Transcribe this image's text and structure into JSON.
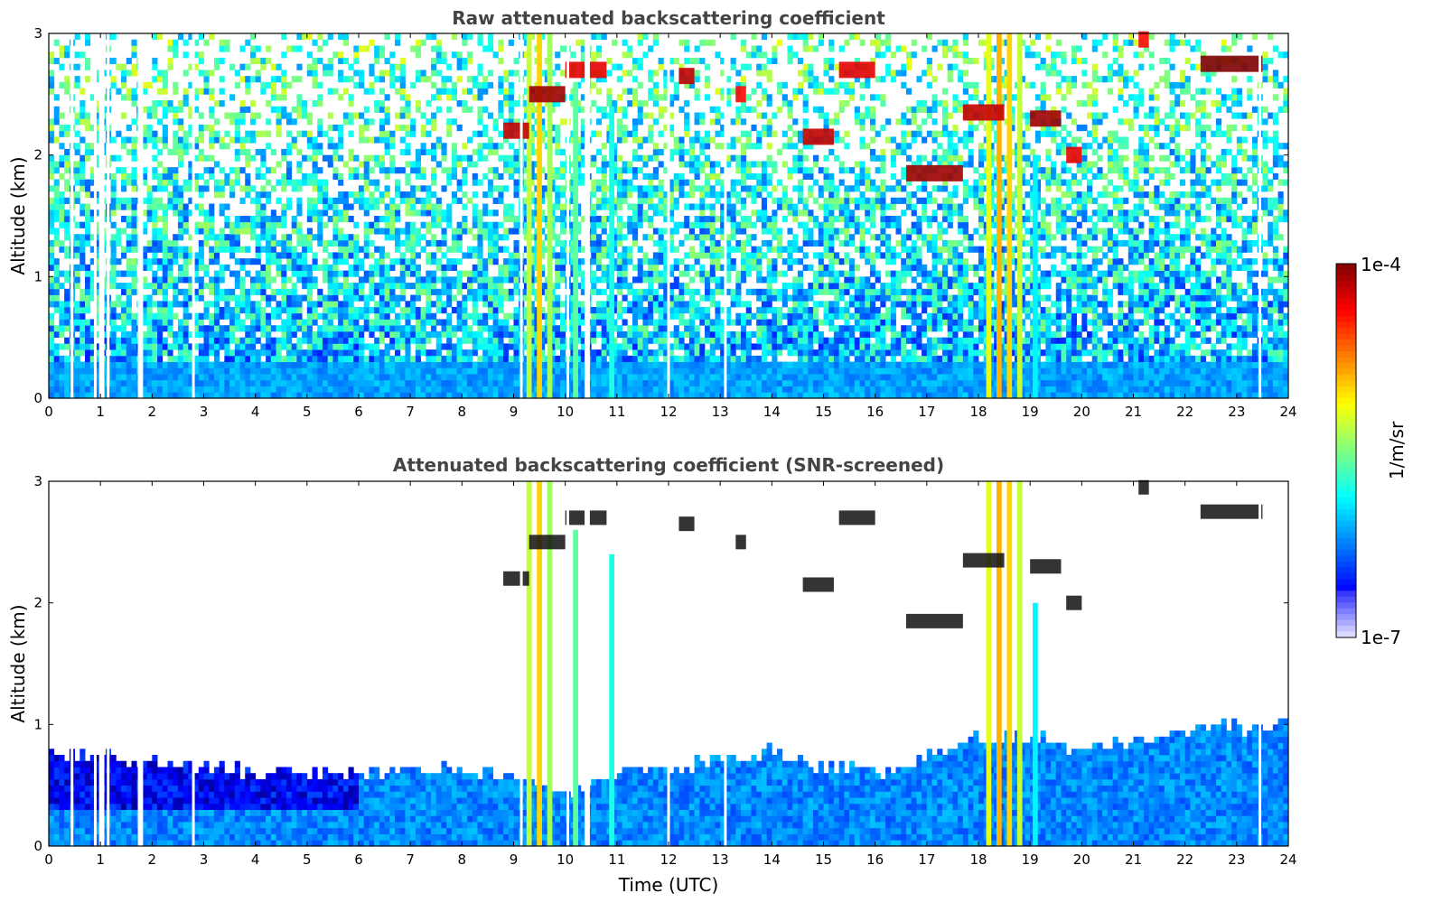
{
  "chart_data": [
    {
      "type": "heatmap",
      "title": "Raw attenuated backscattering coefficient",
      "xlabel": "",
      "ylabel": "Altitude (km)",
      "xlim": [
        0,
        24
      ],
      "ylim": [
        0,
        3
      ],
      "x_ticks": [
        0,
        1,
        2,
        3,
        4,
        5,
        6,
        7,
        8,
        9,
        10,
        11,
        12,
        13,
        14,
        15,
        16,
        17,
        18,
        19,
        20,
        21,
        22,
        23,
        24
      ],
      "y_ticks": [
        0,
        1,
        2,
        3
      ],
      "colormap": "jet",
      "color_scale": "log",
      "clim": [
        "1e-7",
        "1e-4"
      ],
      "background_cloud_base_km": 0.3,
      "noise_above_boundary_layer": true,
      "gap_columns_utc": [
        0.45,
        0.9,
        1.0,
        1.05,
        1.15,
        1.75,
        1.8,
        2.8,
        9.15,
        10.05,
        10.4,
        10.45,
        12.0,
        13.1,
        23.45
      ],
      "intense_columns_utc": [
        {
          "x": 9.3,
          "top_km": 3.0,
          "value_log10": -5.3
        },
        {
          "x": 9.5,
          "top_km": 3.0,
          "value_log10": -5.0
        },
        {
          "x": 9.7,
          "top_km": 3.0,
          "value_log10": -5.4
        },
        {
          "x": 10.2,
          "top_km": 2.6,
          "value_log10": -5.6
        },
        {
          "x": 10.9,
          "top_km": 2.4,
          "value_log10": -5.8
        },
        {
          "x": 18.2,
          "top_km": 3.0,
          "value_log10": -5.2
        },
        {
          "x": 18.4,
          "top_km": 3.0,
          "value_log10": -4.9
        },
        {
          "x": 18.6,
          "top_km": 3.0,
          "value_log10": -5.0
        },
        {
          "x": 18.8,
          "top_km": 3.0,
          "value_log10": -5.3
        },
        {
          "x": 19.1,
          "top_km": 2.0,
          "value_log10": -5.9
        }
      ],
      "cloud_segments": [
        {
          "x0": 8.8,
          "x1": 9.3,
          "alt_km": 2.2,
          "value_log10": -4.2
        },
        {
          "x0": 9.3,
          "x1": 10.0,
          "alt_km": 2.5,
          "value_log10": -4.1
        },
        {
          "x0": 10.0,
          "x1": 10.8,
          "alt_km": 2.7,
          "value_log10": -4.3
        },
        {
          "x0": 12.2,
          "x1": 12.5,
          "alt_km": 2.65,
          "value_log10": -4.2
        },
        {
          "x0": 13.3,
          "x1": 13.5,
          "alt_km": 2.5,
          "value_log10": -4.4
        },
        {
          "x0": 14.6,
          "x1": 15.2,
          "alt_km": 2.15,
          "value_log10": -4.2
        },
        {
          "x0": 15.3,
          "x1": 16.0,
          "alt_km": 2.7,
          "value_log10": -4.3
        },
        {
          "x0": 16.6,
          "x1": 17.7,
          "alt_km": 1.85,
          "value_log10": -4.1
        },
        {
          "x0": 17.7,
          "x1": 18.5,
          "alt_km": 2.35,
          "value_log10": -4.2
        },
        {
          "x0": 19.0,
          "x1": 19.6,
          "alt_km": 2.3,
          "value_log10": -4.1
        },
        {
          "x0": 19.7,
          "x1": 20.0,
          "alt_km": 2.0,
          "value_log10": -4.3
        },
        {
          "x0": 21.1,
          "x1": 21.3,
          "alt_km": 2.95,
          "value_log10": -4.4
        },
        {
          "x0": 22.3,
          "x1": 23.5,
          "alt_km": 2.75,
          "value_log10": -4.0
        }
      ]
    },
    {
      "type": "heatmap",
      "title": "Attenuated backscattering coefficient (SNR-screened)",
      "xlabel": "Time (UTC)",
      "ylabel": "Altitude (km)",
      "xlim": [
        0,
        24
      ],
      "ylim": [
        0,
        3
      ],
      "x_ticks": [
        0,
        1,
        2,
        3,
        4,
        5,
        6,
        7,
        8,
        9,
        10,
        11,
        12,
        13,
        14,
        15,
        16,
        17,
        18,
        19,
        20,
        21,
        22,
        23,
        24
      ],
      "y_ticks": [
        0,
        1,
        2,
        3
      ],
      "colormap": "jet",
      "color_scale": "log",
      "clim": [
        "1e-7",
        "1e-4"
      ],
      "screened_values_shown_as": "white",
      "boundary_layer_top_km": [
        {
          "x": 0,
          "top_km": 0.75
        },
        {
          "x": 2,
          "top_km": 0.7
        },
        {
          "x": 4,
          "top_km": 0.6
        },
        {
          "x": 6,
          "top_km": 0.6
        },
        {
          "x": 8,
          "top_km": 0.65
        },
        {
          "x": 9,
          "top_km": 0.55
        },
        {
          "x": 10,
          "top_km": 0.45
        },
        {
          "x": 11,
          "top_km": 0.6
        },
        {
          "x": 12,
          "top_km": 0.65
        },
        {
          "x": 13,
          "top_km": 0.7
        },
        {
          "x": 14,
          "top_km": 0.8
        },
        {
          "x": 15,
          "top_km": 0.65
        },
        {
          "x": 16,
          "top_km": 0.6
        },
        {
          "x": 17,
          "top_km": 0.75
        },
        {
          "x": 18,
          "top_km": 0.9
        },
        {
          "x": 19,
          "top_km": 0.9
        },
        {
          "x": 20,
          "top_km": 0.8
        },
        {
          "x": 22,
          "top_km": 0.95
        },
        {
          "x": 24,
          "top_km": 1.0
        }
      ]
    }
  ],
  "colorbar": {
    "label": "1/m/sr",
    "max_label": "1e-4",
    "min_label": "1e-7",
    "colormap": "jet"
  }
}
